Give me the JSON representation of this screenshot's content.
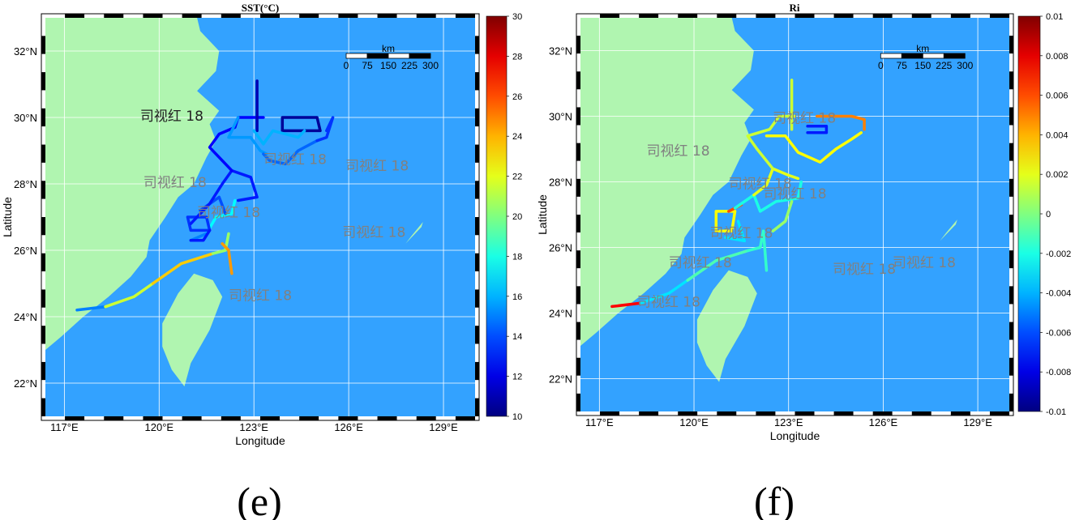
{
  "colors": {
    "sea": "#33a2ff",
    "land": "#b0f5b0",
    "grid": "#ffffff",
    "annotation": "#808080"
  },
  "chart_data": [
    {
      "type": "map",
      "panel_caption": "(e)",
      "title": "SST(°C)",
      "xlabel": "Longitude",
      "ylabel": "Latitude",
      "xlim": [
        116.4,
        130.0
      ],
      "ylim": [
        21.0,
        33.0
      ],
      "x_ticks": [
        "117°E",
        "120°E",
        "123°E",
        "126°E",
        "129°E"
      ],
      "y_ticks": [
        "32°N",
        "30°N",
        "28°N",
        "26°N",
        "24°N",
        "22°N"
      ],
      "colorbar": {
        "colormap": "jet",
        "range": [
          10,
          30
        ],
        "ticks": [
          "30",
          "28",
          "26",
          "24",
          "22",
          "20",
          "18",
          "16",
          "14",
          "12",
          "10"
        ]
      },
      "scale_bar": {
        "unit": "km",
        "labels": [
          "0",
          "75",
          "150",
          "225",
          "300"
        ]
      },
      "annotations": [
        {
          "text": "司视红 18",
          "lon": 120.4,
          "lat": 29.9,
          "dark": true
        },
        {
          "text": "司视红 18",
          "lon": 124.3,
          "lat": 28.6
        },
        {
          "text": "司视红 18",
          "lon": 126.9,
          "lat": 28.4
        },
        {
          "text": "司视红 18",
          "lon": 120.5,
          "lat": 27.9
        },
        {
          "text": "司视红 18",
          "lon": 122.2,
          "lat": 27.0
        },
        {
          "text": "司视红 18",
          "lon": 126.8,
          "lat": 26.4
        },
        {
          "text": "司视红 18",
          "lon": 123.2,
          "lat": 24.5
        }
      ],
      "tracks": [
        {
          "value": 15.0,
          "points": [
            [
              117.4,
              24.2
            ],
            [
              118.3,
              24.3
            ]
          ]
        },
        {
          "value": 21.5,
          "points": [
            [
              118.3,
              24.3
            ],
            [
              119.2,
              24.6
            ],
            [
              119.8,
              25.0
            ]
          ]
        },
        {
          "value": 23.5,
          "points": [
            [
              119.8,
              25.0
            ],
            [
              120.7,
              25.6
            ],
            [
              121.7,
              25.9
            ]
          ]
        },
        {
          "value": 20.5,
          "points": [
            [
              121.7,
              25.9
            ],
            [
              122.1,
              26.0
            ],
            [
              122.2,
              26.5
            ]
          ]
        },
        {
          "value": 24.5,
          "points": [
            [
              122.0,
              26.2
            ],
            [
              122.2,
              26.0
            ],
            [
              122.3,
              25.3
            ]
          ]
        },
        {
          "value": 17.5,
          "points": [
            [
              121.5,
              26.5
            ],
            [
              121.8,
              27.0
            ],
            [
              122.3,
              27.1
            ],
            [
              122.4,
              27.5
            ]
          ]
        },
        {
          "value": 15.0,
          "points": [
            [
              121.0,
              26.3
            ],
            [
              121.5,
              26.5
            ]
          ]
        },
        {
          "value": 13.5,
          "points": [
            [
              120.9,
              27.0
            ],
            [
              121.5,
              27.0
            ],
            [
              121.6,
              26.6
            ],
            [
              121.0,
              26.6
            ],
            [
              120.9,
              27.0
            ]
          ]
        },
        {
          "value": 13.0,
          "points": [
            [
              121.6,
              26.6
            ],
            [
              121.4,
              26.3
            ],
            [
              121.0,
              26.3
            ]
          ]
        },
        {
          "value": 14.0,
          "points": [
            [
              121.3,
              27.2
            ],
            [
              121.9,
              27.6
            ],
            [
              122.1,
              27.1
            ]
          ]
        },
        {
          "value": 13.0,
          "points": [
            [
              121.0,
              26.8
            ],
            [
              121.6,
              27.4
            ],
            [
              122.0,
              28.0
            ],
            [
              122.3,
              28.4
            ],
            [
              122.9,
              28.2
            ],
            [
              123.1,
              27.6
            ],
            [
              122.5,
              27.5
            ]
          ]
        },
        {
          "value": 12.5,
          "points": [
            [
              122.3,
              28.4
            ],
            [
              121.6,
              29.1
            ],
            [
              121.9,
              29.5
            ],
            [
              122.4,
              29.7
            ],
            [
              122.5,
              30.0
            ],
            [
              123.3,
              30.0
            ]
          ]
        },
        {
          "value": 15.5,
          "points": [
            [
              122.5,
              30.0
            ],
            [
              122.2,
              29.4
            ],
            [
              122.9,
              29.4
            ],
            [
              123.2,
              29.0
            ],
            [
              123.4,
              28.9
            ]
          ]
        },
        {
          "value": 14.5,
          "points": [
            [
              123.3,
              28.9
            ],
            [
              123.5,
              28.7
            ],
            [
              124.0,
              28.6
            ],
            [
              124.4,
              29.0
            ],
            [
              125.0,
              29.3
            ]
          ]
        },
        {
          "value": 13.5,
          "points": [
            [
              125.0,
              29.3
            ],
            [
              125.3,
              29.4
            ],
            [
              125.5,
              30.0
            ],
            [
              125.3,
              29.6
            ]
          ]
        },
        {
          "value": 10.5,
          "points": [
            [
              123.9,
              30.0
            ],
            [
              125.0,
              30.0
            ],
            [
              125.1,
              29.6
            ],
            [
              123.9,
              29.6
            ],
            [
              123.9,
              30.0
            ]
          ]
        },
        {
          "value": 11.0,
          "points": [
            [
              123.1,
              29.6
            ],
            [
              123.1,
              30.6
            ],
            [
              123.1,
              31.1
            ]
          ]
        },
        {
          "value": 16.0,
          "points": [
            [
              123.0,
              29.6
            ],
            [
              123.3,
              29.2
            ],
            [
              123.6,
              29.6
            ],
            [
              124.4,
              29.4
            ],
            [
              124.6,
              29.6
            ]
          ]
        }
      ]
    },
    {
      "type": "map",
      "panel_caption": "(f)",
      "title": "Ri",
      "xlabel": "Longitude",
      "ylabel": "Latitude",
      "xlim": [
        116.4,
        130.0
      ],
      "ylim": [
        21.0,
        33.0
      ],
      "x_ticks": [
        "117°E",
        "120°E",
        "123°E",
        "126°E",
        "129°E"
      ],
      "y_ticks": [
        "32°N",
        "30°N",
        "28°N",
        "26°N",
        "24°N",
        "22°N"
      ],
      "colorbar": {
        "colormap": "jet",
        "range": [
          -0.01,
          0.01
        ],
        "ticks": [
          "0.01",
          "0.008",
          "0.006",
          "0.004",
          "0.002",
          "0",
          "-0.002",
          "-0.004",
          "-0.006",
          "-0.008",
          "-0.01"
        ]
      },
      "scale_bar": {
        "unit": "km",
        "labels": [
          "0",
          "75",
          "150",
          "225",
          "300"
        ]
      },
      "annotations": [
        {
          "text": "司视红 18",
          "lon": 119.5,
          "lat": 28.8
        },
        {
          "text": "司视红 18",
          "lon": 123.5,
          "lat": 29.8
        },
        {
          "text": "司视红 18",
          "lon": 122.1,
          "lat": 27.8
        },
        {
          "text": "司视红 18",
          "lon": 123.2,
          "lat": 27.5
        },
        {
          "text": "司视红 18",
          "lon": 121.5,
          "lat": 26.3
        },
        {
          "text": "司视红 18",
          "lon": 120.2,
          "lat": 25.4
        },
        {
          "text": "司视红 18",
          "lon": 125.4,
          "lat": 25.2
        },
        {
          "text": "司视红 18",
          "lon": 127.3,
          "lat": 25.4
        },
        {
          "text": "司视红 18",
          "lon": 119.2,
          "lat": 24.2
        }
      ],
      "tracks": [
        {
          "value": 0.0075,
          "points": [
            [
              117.4,
              24.2
            ],
            [
              118.3,
              24.3
            ]
          ]
        },
        {
          "value": -0.003,
          "points": [
            [
              118.3,
              24.3
            ],
            [
              119.2,
              24.6
            ],
            [
              119.8,
              25.0
            ]
          ]
        },
        {
          "value": -0.001,
          "points": [
            [
              119.8,
              25.0
            ],
            [
              120.7,
              25.6
            ],
            [
              121.7,
              25.9
            ]
          ]
        },
        {
          "value": -0.0015,
          "points": [
            [
              121.7,
              25.9
            ],
            [
              122.1,
              26.0
            ],
            [
              122.2,
              26.5
            ]
          ]
        },
        {
          "value": -0.0015,
          "points": [
            [
              122.2,
              26.5
            ],
            [
              122.3,
              25.3
            ]
          ]
        },
        {
          "value": 0.0025,
          "points": [
            [
              120.7,
              26.5
            ],
            [
              121.2,
              26.5
            ],
            [
              121.3,
              27.1
            ],
            [
              120.7,
              27.1
            ],
            [
              120.7,
              26.5
            ]
          ]
        },
        {
          "value": -0.003,
          "points": [
            [
              121.0,
              26.3
            ],
            [
              121.6,
              26.2
            ],
            [
              121.4,
              26.8
            ]
          ]
        },
        {
          "value": 0.006,
          "points": [
            [
              121.1,
              27.1
            ],
            [
              121.3,
              27.2
            ],
            [
              121.5,
              27.3
            ]
          ]
        },
        {
          "value": -0.002,
          "points": [
            [
              121.3,
              27.2
            ],
            [
              121.9,
              27.6
            ],
            [
              122.1,
              27.1
            ],
            [
              122.6,
              27.4
            ],
            [
              123.3,
              27.5
            ],
            [
              123.4,
              28.0
            ]
          ]
        },
        {
          "value": 0.002,
          "points": [
            [
              121.9,
              27.6
            ],
            [
              122.3,
              27.9
            ],
            [
              122.5,
              28.4
            ],
            [
              123.0,
              28.2
            ],
            [
              123.3,
              28.1
            ]
          ]
        },
        {
          "value": 0.0015,
          "points": [
            [
              122.5,
              28.4
            ],
            [
              122.0,
              29.0
            ],
            [
              121.7,
              29.4
            ],
            [
              122.4,
              29.6
            ],
            [
              122.7,
              30.0
            ],
            [
              123.2,
              30.0
            ]
          ]
        },
        {
          "value": 0.0025,
          "points": [
            [
              122.3,
              29.4
            ],
            [
              122.9,
              29.4
            ],
            [
              123.3,
              28.9
            ],
            [
              124.0,
              28.6
            ],
            [
              124.5,
              29.0
            ],
            [
              125.0,
              29.3
            ],
            [
              125.3,
              29.5
            ]
          ]
        },
        {
          "value": 0.005,
          "points": [
            [
              123.9,
              30.0
            ],
            [
              125.0,
              30.0
            ],
            [
              125.4,
              29.9
            ],
            [
              125.4,
              29.6
            ]
          ]
        },
        {
          "value": -0.007,
          "points": [
            [
              123.6,
              29.5
            ],
            [
              124.2,
              29.5
            ],
            [
              124.2,
              29.7
            ],
            [
              123.6,
              29.7
            ]
          ]
        },
        {
          "value": 0.0015,
          "points": [
            [
              123.1,
              29.6
            ],
            [
              123.1,
              30.6
            ],
            [
              123.1,
              31.1
            ]
          ]
        },
        {
          "value": 0.0005,
          "points": [
            [
              122.5,
              26.5
            ],
            [
              122.9,
              26.8
            ],
            [
              123.1,
              27.4
            ]
          ]
        }
      ]
    }
  ]
}
